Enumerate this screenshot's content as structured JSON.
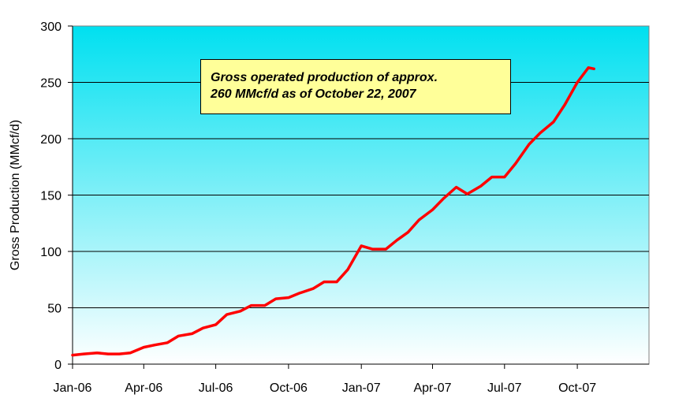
{
  "chart_data": {
    "type": "line",
    "title": "",
    "xlabel": "",
    "ylabel": "Gross Production (MMcf/d)",
    "ylim": [
      0,
      300
    ],
    "yticks": [
      0,
      50,
      100,
      150,
      200,
      250,
      300
    ],
    "xticks": [
      "Jan-06",
      "Apr-06",
      "Jul-06",
      "Oct-06",
      "Jan-07",
      "Apr-07",
      "Jul-07",
      "Oct-07"
    ],
    "x_range": [
      "2006-01-01",
      "2007-12-31"
    ],
    "grid": true,
    "legend": "none",
    "annotation": {
      "line1": "Gross operated production of approx.",
      "line2": "260 MMcf/d as of October 22, 2007"
    },
    "colors": {
      "line": "#ff0000",
      "plot_top": "#00e0f0",
      "plot_bottom": "#ffffff",
      "annotation_fill": "#ffff99"
    },
    "series": [
      {
        "x": [
          "2006-01-01",
          "2006-01-15",
          "2006-02-01",
          "2006-02-15",
          "2006-03-01",
          "2006-03-15",
          "2006-04-01",
          "2006-04-15",
          "2006-05-01",
          "2006-05-15",
          "2006-06-01",
          "2006-06-15",
          "2006-07-01",
          "2006-07-15",
          "2006-08-01",
          "2006-08-15",
          "2006-09-01",
          "2006-09-15",
          "2006-10-01",
          "2006-10-15",
          "2006-11-01",
          "2006-11-15",
          "2006-12-01",
          "2006-12-15",
          "2007-01-01",
          "2007-01-15",
          "2007-02-01",
          "2007-02-15",
          "2007-03-01",
          "2007-03-15",
          "2007-04-01",
          "2007-04-15",
          "2007-05-01",
          "2007-05-15",
          "2007-06-01",
          "2007-06-15",
          "2007-07-01",
          "2007-07-15",
          "2007-08-01",
          "2007-08-15",
          "2007-09-01",
          "2007-09-15",
          "2007-10-01",
          "2007-10-15",
          "2007-10-22"
        ],
        "y": [
          8,
          9,
          10,
          9,
          9,
          10,
          15,
          17,
          19,
          25,
          27,
          32,
          35,
          44,
          47,
          52,
          52,
          58,
          59,
          63,
          67,
          73,
          73,
          84,
          105,
          102,
          102,
          110,
          117,
          128,
          137,
          147,
          157,
          151,
          158,
          166,
          166,
          178,
          195,
          205,
          215,
          230,
          250,
          263,
          262
        ]
      }
    ]
  }
}
